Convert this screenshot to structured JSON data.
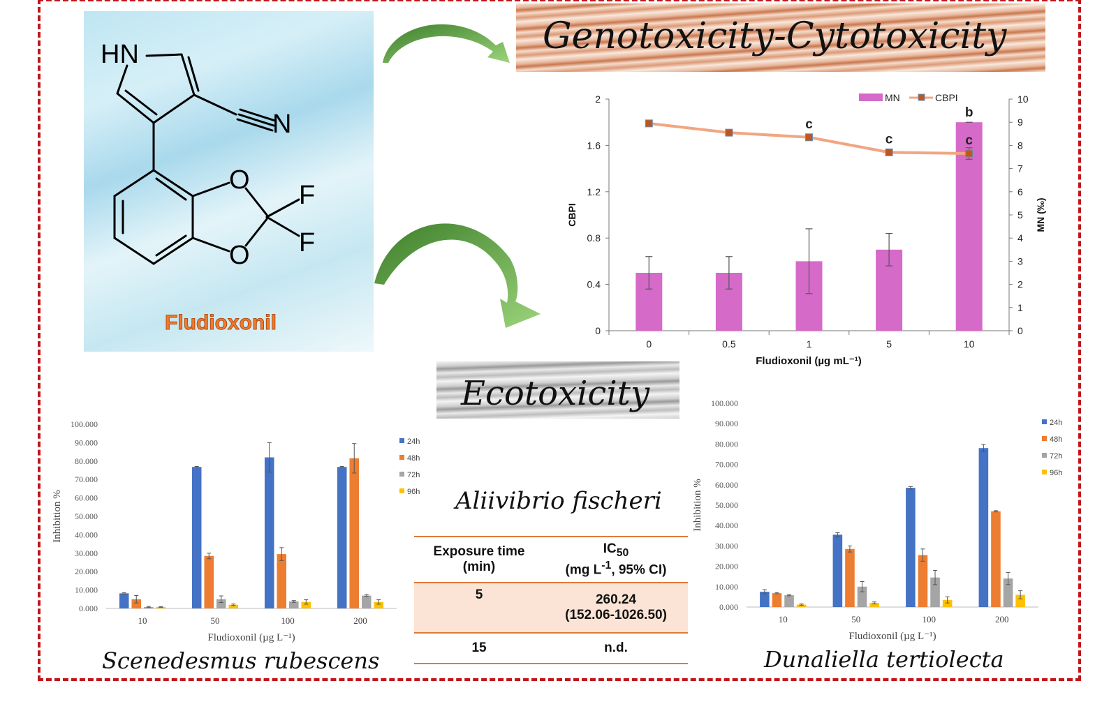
{
  "molecule": {
    "name": "Fludioxonil",
    "atoms": {
      "hn": "HN",
      "n": "N",
      "o1": "O",
      "o2": "O",
      "f1": "F",
      "f2": "F"
    },
    "name_color": "#ef7b2f"
  },
  "banners": {
    "geno": "Genotoxicity-Cytotoxicity",
    "eco": "Ecotoxicity"
  },
  "colors": {
    "frame": "#c0161b",
    "arrow": "#5a9e3c",
    "mn_bar": "#d66ac9",
    "cbpi_line": "#f2a582",
    "cbpi_marker": "#c0561e",
    "h24": "#4472c4",
    "h48": "#ed7d31",
    "h72": "#a5a5a5",
    "h96": "#ffc000",
    "table_accent": "#e07b39"
  },
  "fischeri": {
    "title": "Aliivibrio fischeri",
    "headers": {
      "col1_line1": "Exposure time",
      "col1_line2": "(min)",
      "col2_line1": "IC",
      "col2_sub": "50",
      "col2_line2_a": "(mg L",
      "col2_sup": "-1",
      "col2_line2_b": ", 95% CI)"
    },
    "rows": [
      {
        "time": "5",
        "ic50": "260.24",
        "ci": "(152.06-1026.50)"
      },
      {
        "time": "15",
        "ic50": "n.d.",
        "ci": ""
      }
    ]
  },
  "captions": {
    "left": "Scenedesmus rubescens",
    "right": "Dunaliella tertiolecta"
  },
  "chart_data": [
    {
      "id": "genotoxicity",
      "type": "bar",
      "xlabel": "Fludioxonil (µg mL⁻¹)",
      "ylabel_left": "CBPI",
      "ylabel_right": "MN (‰)",
      "categories": [
        "0",
        "0.5",
        "1",
        "5",
        "10"
      ],
      "ylim_left": [
        0,
        2
      ],
      "yticks_left": [
        "0",
        "0.4",
        "0.8",
        "1.2",
        "1.6",
        "2"
      ],
      "ylim_right": [
        0,
        10
      ],
      "yticks_right": [
        "0",
        "1",
        "2",
        "3",
        "4",
        "5",
        "6",
        "7",
        "8",
        "9",
        "10"
      ],
      "legend": [
        "MN",
        "CBPI"
      ],
      "series": [
        {
          "name": "MN",
          "kind": "bar",
          "axis": "right",
          "values": [
            2.5,
            2.5,
            3.0,
            3.5,
            9.0
          ],
          "errors": [
            0.7,
            0.7,
            1.4,
            0.7,
            0.0
          ],
          "labels": [
            "",
            "",
            "",
            "",
            "b"
          ]
        },
        {
          "name": "CBPI",
          "kind": "line",
          "axis": "left",
          "values": [
            1.79,
            1.71,
            1.67,
            1.54,
            1.53
          ],
          "errors": [
            0,
            0,
            0,
            0,
            0.05
          ],
          "labels": [
            "",
            "",
            "c",
            "c",
            "c"
          ]
        }
      ]
    },
    {
      "id": "scenedesmus",
      "type": "bar",
      "xlabel": "Fludioxonil (µg L⁻¹)",
      "ylabel": "Inhibition %",
      "categories": [
        "10",
        "50",
        "100",
        "200"
      ],
      "ylim": [
        0,
        100
      ],
      "yticks": [
        "0.000",
        "10.000",
        "20.000",
        "30.000",
        "40.000",
        "50.000",
        "60.000",
        "70.000",
        "80.000",
        "90.000",
        "100.000"
      ],
      "series": [
        {
          "name": "24h",
          "values": [
            8.2,
            76.8,
            82.0,
            76.8
          ],
          "errors": [
            0.4,
            0.3,
            8.0,
            0.3
          ]
        },
        {
          "name": "48h",
          "values": [
            5.0,
            28.5,
            29.5,
            81.5
          ],
          "errors": [
            2.0,
            1.5,
            3.5,
            8.0
          ]
        },
        {
          "name": "72h",
          "values": [
            0.8,
            5.0,
            3.8,
            7.0
          ],
          "errors": [
            0.3,
            1.8,
            0.5,
            0.5
          ]
        },
        {
          "name": "96h",
          "values": [
            0.8,
            2.0,
            3.5,
            3.5
          ],
          "errors": [
            0.2,
            0.4,
            1.2,
            1.2
          ]
        }
      ]
    },
    {
      "id": "dunaliella",
      "type": "bar",
      "xlabel": "Fludioxonil (µg L⁻¹)",
      "ylabel": "Inhibition %",
      "categories": [
        "10",
        "50",
        "100",
        "200"
      ],
      "ylim": [
        0,
        100
      ],
      "yticks": [
        "0.000",
        "10.000",
        "20.000",
        "30.000",
        "40.000",
        "50.000",
        "60.000",
        "70.000",
        "80.000",
        "90.000",
        "100.000"
      ],
      "series": [
        {
          "name": "24h",
          "values": [
            7.5,
            35.5,
            58.5,
            78.0
          ],
          "errors": [
            1.0,
            1.0,
            0.6,
            1.8
          ]
        },
        {
          "name": "48h",
          "values": [
            6.8,
            28.5,
            25.5,
            47.0
          ],
          "errors": [
            0.3,
            1.5,
            3.0,
            0.3
          ]
        },
        {
          "name": "72h",
          "values": [
            5.8,
            10.0,
            14.5,
            14.0
          ],
          "errors": [
            0.3,
            2.5,
            3.5,
            3.0
          ]
        },
        {
          "name": "96h",
          "values": [
            1.2,
            2.0,
            3.5,
            6.0
          ],
          "errors": [
            0.3,
            0.5,
            1.5,
            2.0
          ]
        }
      ]
    }
  ]
}
